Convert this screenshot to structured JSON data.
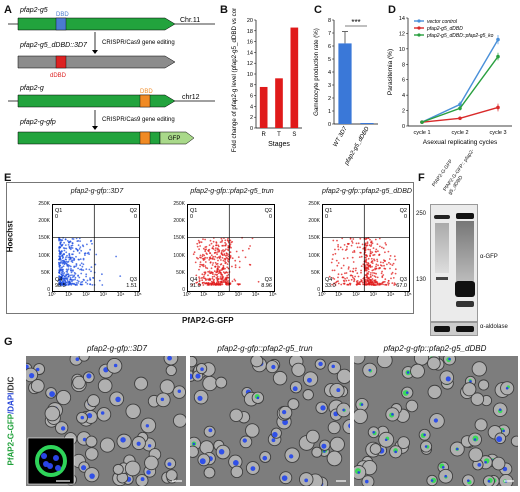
{
  "panels": {
    "A": {
      "label": "A",
      "gene1": "pfap2-g5",
      "gene1_domain": "DBD",
      "chr1": "Chr.11",
      "gene2": "pfap2-g5_dDBD::3D7",
      "gene2_domain": "dDBD",
      "edit1": "CRISPR/Cas9 gene editing",
      "gene3": "pfap2-g",
      "gene3_domain": "DBD",
      "chr2": "chr12",
      "gene4": "pfap2-g-gfp",
      "gene4_tag": "GFP",
      "edit2": "CRISPR/Cas9 gene editing",
      "colors": {
        "green": "#22a33d",
        "grey": "#8c8c8c",
        "blue_box": "#4a7bd0",
        "red_box": "#d22",
        "orange_box": "#f08a24",
        "gfp": "#a9d98a"
      }
    },
    "B": {
      "label": "B"
    },
    "C": {
      "label": "C"
    },
    "D": {
      "label": "D"
    },
    "E": {
      "label": "E",
      "ylabel": "Hoechst",
      "xlabel": "PfAP2-G-GFP",
      "plots": [
        {
          "title": "pfap2-g-gfp::3D7",
          "q1": "Q1",
          "q1v": "0",
          "q2": "Q2",
          "q2v": "0",
          "q3": "Q3",
          "q3v": "1.51",
          "q4": "Q4",
          "q4v": "98.5",
          "color": "#1f4fe0"
        },
        {
          "title": "pfap2-g-gfp::pfap2-g5_trun",
          "q1": "Q1",
          "q1v": "0",
          "q2": "Q2",
          "q2v": "0",
          "q3": "Q3",
          "q3v": "8.96",
          "q4": "Q4",
          "q4v": "91.0",
          "color": "#e01a1a"
        },
        {
          "title": "pfap2-g-gfp::pfap2-g5_dDBD",
          "q1": "Q1",
          "q1v": "0",
          "q2": "Q2",
          "q2v": "0",
          "q3": "Q3",
          "q3v": "67.0",
          "q4": "Q4",
          "q4v": "33.0",
          "color": "#e01a1a"
        }
      ],
      "yticks": [
        "250K",
        "200K",
        "150K",
        "100K",
        "50K",
        "0"
      ],
      "xticks": [
        "10⁰",
        "10¹",
        "10²",
        "10³",
        "10⁴",
        "10⁵"
      ]
    },
    "F": {
      "label": "F",
      "lanes": [
        "PfAP2-G-GFP",
        "PfAP2-G-GFP:: pfap2-g5_dDBD"
      ],
      "markers": [
        "250",
        "130"
      ],
      "band1": "α-GFP",
      "band2": "α-aldolase"
    },
    "G": {
      "label": "G",
      "side_label_green": "PfAP2-G-GFP",
      "side_label_blue": "/DAPI",
      "side_label_grey": "/DIC",
      "titles": [
        "pfap2-g-gfp::3D7",
        "pfap2-g-gfp::pfap2-g5_trun",
        "pfap2-g-gfp::pfap2-g5_dDBD"
      ]
    }
  },
  "chart_data": [
    {
      "type": "bar",
      "title": "",
      "ylabel": "Fold change of pfap2-g level (pfap2-g5_dDBD vs control)",
      "xlabel": "Stages",
      "categories": [
        "R",
        "T",
        "S"
      ],
      "values": [
        7.6,
        9.2,
        18.6
      ],
      "ylim": [
        0,
        20
      ],
      "yticks": [
        0,
        2,
        4,
        6,
        8,
        10,
        12,
        14,
        16,
        18,
        20
      ],
      "color": "#e01a1a"
    },
    {
      "type": "bar",
      "title": "",
      "ylabel": "Gametocyte production rate (%)",
      "categories": [
        "WT 3D7",
        "pfap2-g5_dDBD"
      ],
      "values": [
        6.2,
        0
      ],
      "errors": [
        0.9,
        0
      ],
      "ylim": [
        0,
        8
      ],
      "yticks": [
        0,
        1,
        2,
        3,
        4,
        5,
        6,
        7,
        8
      ],
      "significance": "***",
      "color": "#3a78d8"
    },
    {
      "type": "line",
      "title": "",
      "ylabel": "Parasitemia (%)",
      "xlabel": "Asexual replicating cycles",
      "categories": [
        "cycle 1",
        "cycle 2",
        "cycle 3"
      ],
      "ylim": [
        0,
        14
      ],
      "yticks": [
        0,
        2,
        4,
        6,
        8,
        10,
        12,
        14
      ],
      "legend_position": "top-left",
      "series": [
        {
          "name": "vector control",
          "values": [
            0.5,
            2.8,
            11.2
          ],
          "errors": [
            0.1,
            0.4,
            0.6
          ],
          "color": "#4a90d9"
        },
        {
          "name": "pfap2-g5_dDBD",
          "values": [
            0.5,
            1.0,
            2.4
          ],
          "errors": [
            0.1,
            0.2,
            0.5
          ],
          "color": "#d92a2a"
        },
        {
          "name": "pfap2-g5_dDBD::pfap2-g5_ko",
          "values": [
            0.5,
            2.3,
            9.0
          ],
          "errors": [
            0.1,
            0.3,
            0.5
          ],
          "color": "#2aa040"
        }
      ]
    }
  ]
}
